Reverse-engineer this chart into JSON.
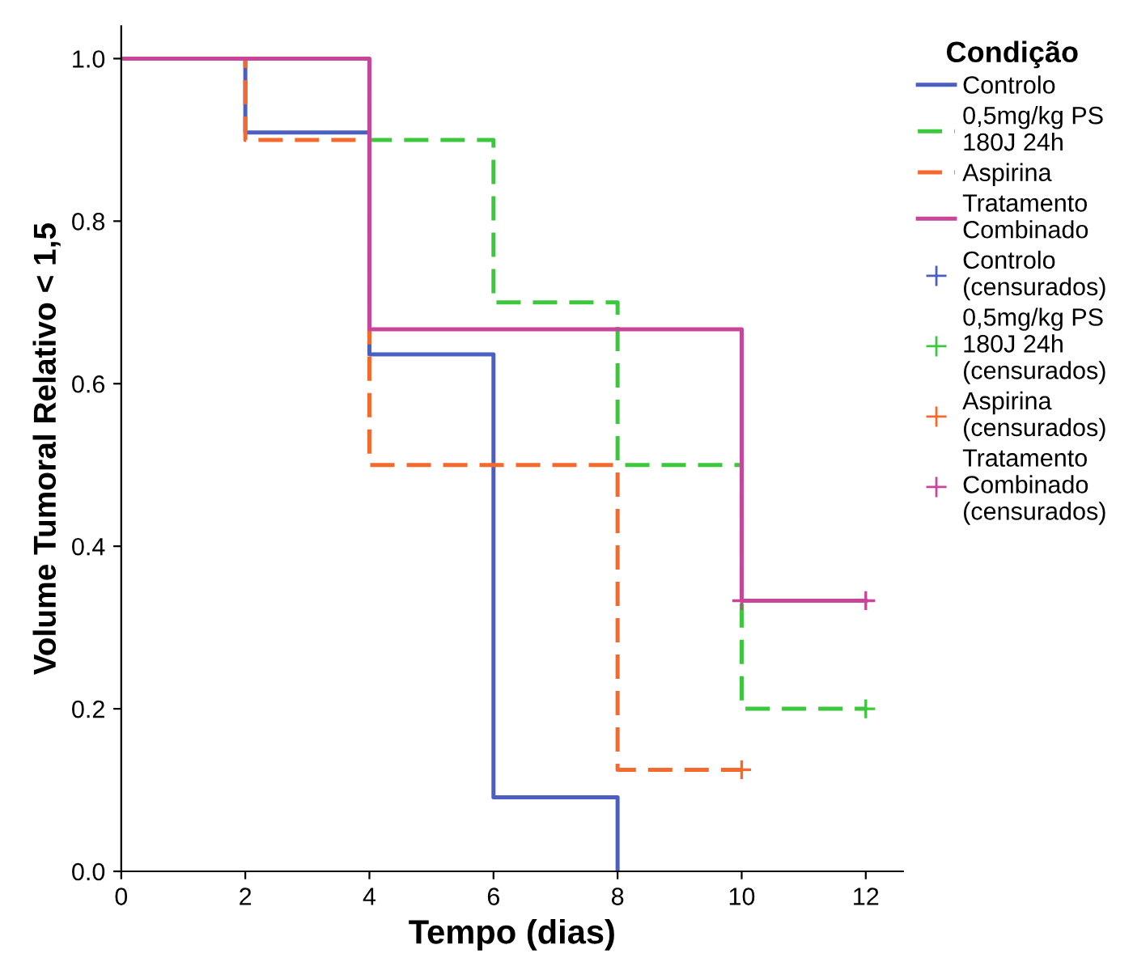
{
  "chart_data": {
    "type": "step",
    "xlabel": "Tempo (dias)",
    "ylabel": "Volume Tumoral Relativo < 1,5",
    "legend_title": "Condição",
    "legend": "right",
    "grid": false,
    "xlim": [
      0,
      12.6
    ],
    "ylim": [
      0,
      1.04
    ],
    "xticks": [
      0,
      2,
      4,
      6,
      8,
      10,
      12
    ],
    "yticks": [
      {
        "value": 0,
        "label": "0.0"
      },
      {
        "value": 0.2,
        "label": "0.2"
      },
      {
        "value": 0.4,
        "label": "0.4"
      },
      {
        "value": 0.6,
        "label": "0.6"
      },
      {
        "value": 0.8,
        "label": "0.8"
      },
      {
        "value": 1,
        "label": "1.0"
      }
    ],
    "series": [
      {
        "name": "Controlo",
        "color": "#4a5fc1",
        "line_style": "solid",
        "x": [
          0,
          2,
          4,
          6,
          8
        ],
        "values": [
          1,
          0.909,
          0.636,
          0.091,
          0
        ]
      },
      {
        "name": "0,5mg/kg PS\n180J 24h",
        "color": "#3cc83c",
        "line_style": "dashed",
        "x": [
          0,
          4,
          6,
          8,
          10,
          12
        ],
        "values": [
          1,
          0.9,
          0.7,
          0.5,
          0.2,
          0.2
        ]
      },
      {
        "name": "Aspirina",
        "color": "#f5692c",
        "line_style": "dashed",
        "x": [
          0,
          2,
          4,
          8,
          10
        ],
        "values": [
          1,
          0.9,
          0.5,
          0.125,
          0.125
        ]
      },
      {
        "name": "Tratamento\nCombinado",
        "color": "#c8459a",
        "line_style": "solid",
        "x": [
          0,
          4,
          10,
          12
        ],
        "values": [
          1,
          0.667,
          0.333,
          0.333
        ]
      },
      {
        "name": "Controlo\n(censurados)",
        "type": "scatter",
        "marker": "cross",
        "color": "#4a5fc1"
      },
      {
        "name": "0,5mg/kg PS\n180J 24h\n(censurados)",
        "type": "scatter",
        "marker": "cross",
        "color": "#3cc83c",
        "x": [
          12
        ],
        "values": [
          0.2
        ]
      },
      {
        "name": "Aspirina\n(censurados)",
        "type": "scatter",
        "marker": "cross",
        "color": "#f5692c",
        "x": [
          10
        ],
        "values": [
          0.125
        ]
      },
      {
        "name": "Tratamento\nCombinado\n(censurados)",
        "type": "scatter",
        "marker": "cross",
        "color": "#c8459a",
        "x": [
          10,
          12
        ],
        "values": [
          0.333,
          0.333
        ]
      }
    ]
  }
}
